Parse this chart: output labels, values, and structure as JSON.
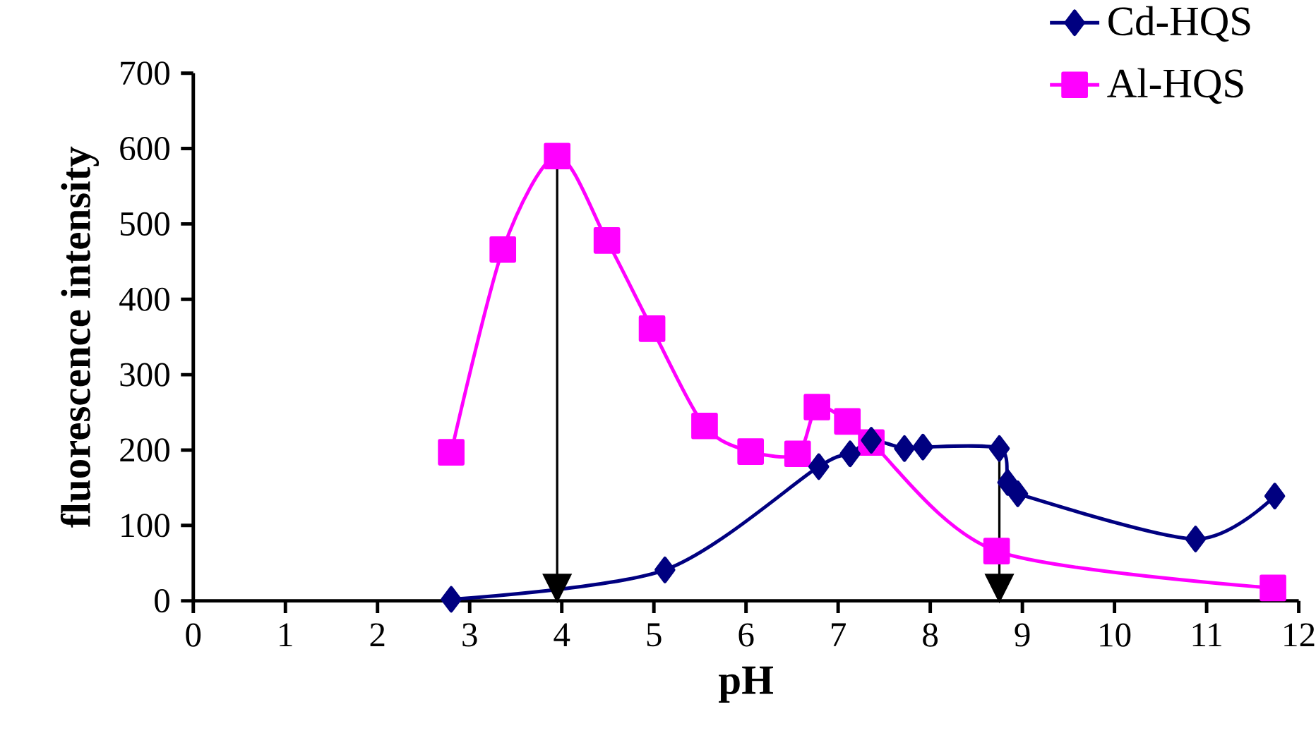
{
  "chart_data": {
    "type": "line",
    "xlabel": "pH",
    "ylabel": "fluorescence intensity",
    "xlim": [
      0,
      12
    ],
    "xticks": [
      0,
      1,
      2,
      3,
      4,
      5,
      6,
      7,
      8,
      9,
      10,
      11,
      12
    ],
    "ylim": [
      0,
      700
    ],
    "yticks": [
      0,
      100,
      200,
      300,
      400,
      500,
      600,
      700
    ],
    "legend": "top right",
    "grid": false,
    "series": [
      {
        "name": "Cd-HQS",
        "color": "#000080",
        "marker": "diamond",
        "x": [
          2.8,
          5.12,
          6.79,
          7.13,
          7.36,
          7.72,
          7.92,
          8.75,
          8.84,
          8.95,
          10.88,
          11.74
        ],
        "values": [
          2,
          41,
          178,
          195,
          213,
          202,
          204,
          202,
          157,
          142,
          82,
          139
        ]
      },
      {
        "name": "Al-HQS",
        "color": "#ff00ff",
        "marker": "square",
        "x": [
          2.8,
          3.36,
          3.95,
          4.49,
          4.98,
          5.55,
          6.05,
          6.56,
          6.77,
          7.1,
          7.36,
          8.72,
          11.72
        ],
        "values": [
          197,
          466,
          590,
          478,
          361,
          232,
          198,
          195,
          257,
          238,
          210,
          66,
          17
        ]
      }
    ],
    "ref_lines": [
      {
        "axis": "x",
        "value": 3.95,
        "color": "#000000",
        "line_style": "solid"
      },
      {
        "axis": "x",
        "value": 8.75,
        "color": "#000000",
        "line_style": "solid"
      }
    ]
  }
}
